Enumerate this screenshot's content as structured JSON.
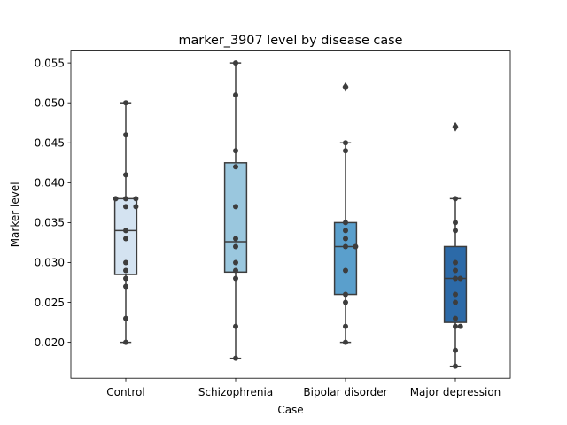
{
  "chart_data": {
    "type": "box",
    "title": "marker_3907 level by disease case",
    "xlabel": "Case",
    "ylabel": "Marker level",
    "ylim": [
      0.0155,
      0.0565
    ],
    "yticks": [
      "0.020",
      "0.025",
      "0.030",
      "0.035",
      "0.040",
      "0.045",
      "0.050",
      "0.055"
    ],
    "grid": false,
    "categories": [
      "Control",
      "Schizophrenia",
      "Bipolar disorder",
      "Major depression"
    ],
    "groups": [
      {
        "name": "Control",
        "color": "#d4e3f1",
        "whisker_low": 0.02,
        "q1": 0.0285,
        "median": 0.034,
        "q3": 0.038,
        "whisker_high": 0.05,
        "outliers": [],
        "points": [
          0.02,
          0.023,
          0.027,
          0.028,
          0.029,
          0.03,
          0.033,
          0.034,
          0.037,
          0.037,
          0.038,
          0.038,
          0.038,
          0.041,
          0.046,
          0.05
        ]
      },
      {
        "name": "Schizophrenia",
        "color": "#9ac7de",
        "whisker_low": 0.018,
        "q1": 0.0288,
        "median": 0.0326,
        "q3": 0.0425,
        "whisker_high": 0.055,
        "outliers": [],
        "points": [
          0.018,
          0.022,
          0.028,
          0.029,
          0.03,
          0.032,
          0.033,
          0.037,
          0.042,
          0.044,
          0.051,
          0.055
        ]
      },
      {
        "name": "Bipolar disorder",
        "color": "#5a9fcc",
        "whisker_low": 0.02,
        "q1": 0.026,
        "median": 0.032,
        "q3": 0.035,
        "whisker_high": 0.045,
        "outliers": [
          0.052
        ],
        "points": [
          0.02,
          0.022,
          0.025,
          0.026,
          0.029,
          0.032,
          0.032,
          0.033,
          0.034,
          0.035,
          0.044,
          0.045,
          0.052
        ]
      },
      {
        "name": "Major depression",
        "color": "#2c6aa8",
        "whisker_low": 0.017,
        "q1": 0.0225,
        "median": 0.028,
        "q3": 0.032,
        "whisker_high": 0.038,
        "outliers": [
          0.047
        ],
        "points": [
          0.017,
          0.019,
          0.022,
          0.022,
          0.023,
          0.025,
          0.026,
          0.028,
          0.028,
          0.029,
          0.03,
          0.034,
          0.035,
          0.038,
          0.047
        ]
      }
    ]
  }
}
